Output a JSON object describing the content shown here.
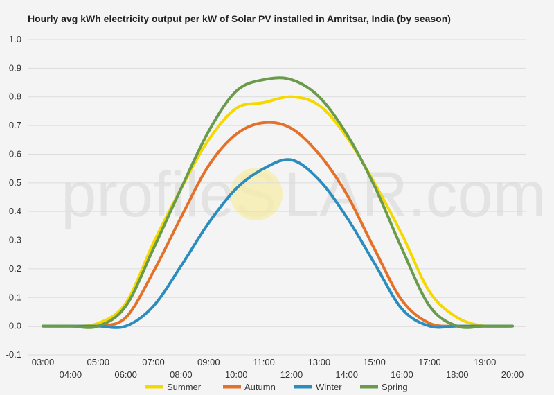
{
  "watermark": {
    "left": "profileS",
    "right": "LAR.com"
  },
  "chart_data": {
    "type": "line",
    "title": "Hourly avg kWh electricity output per kW of Solar PV installed in Amritsar, India (by season)",
    "xlabel": "",
    "ylabel": "",
    "ylim": [
      -0.1,
      1.0
    ],
    "yticks": [
      "-0.1",
      "0.0",
      "0.1",
      "0.2",
      "0.3",
      "0.4",
      "0.5",
      "0.6",
      "0.7",
      "0.8",
      "0.9",
      "1.0"
    ],
    "x": [
      "03:00",
      "04:00",
      "05:00",
      "06:00",
      "07:00",
      "08:00",
      "09:00",
      "10:00",
      "11:00",
      "12:00",
      "13:00",
      "14:00",
      "15:00",
      "16:00",
      "17:00",
      "18:00",
      "19:00",
      "20:00"
    ],
    "grid": true,
    "legend_position": "bottom",
    "series": [
      {
        "name": "Summer",
        "color": "#f5d800",
        "values": [
          0.0,
          0.0,
          0.01,
          0.08,
          0.29,
          0.48,
          0.65,
          0.76,
          0.78,
          0.8,
          0.77,
          0.66,
          0.5,
          0.32,
          0.12,
          0.03,
          0.0,
          0.0
        ]
      },
      {
        "name": "Autumn",
        "color": "#e3712a",
        "values": [
          0.0,
          0.0,
          0.0,
          0.03,
          0.19,
          0.38,
          0.56,
          0.67,
          0.71,
          0.69,
          0.6,
          0.46,
          0.27,
          0.09,
          0.01,
          0.0,
          0.0,
          0.0
        ]
      },
      {
        "name": "Winter",
        "color": "#2b8cbe",
        "values": [
          0.0,
          0.0,
          0.0,
          0.0,
          0.07,
          0.21,
          0.36,
          0.48,
          0.55,
          0.58,
          0.51,
          0.38,
          0.22,
          0.06,
          0.0,
          0.0,
          0.0,
          0.0
        ]
      },
      {
        "name": "Spring",
        "color": "#6a9a4b",
        "values": [
          0.0,
          0.0,
          0.0,
          0.07,
          0.27,
          0.48,
          0.68,
          0.82,
          0.86,
          0.86,
          0.8,
          0.67,
          0.49,
          0.27,
          0.07,
          0.0,
          0.0,
          0.0
        ]
      }
    ]
  }
}
